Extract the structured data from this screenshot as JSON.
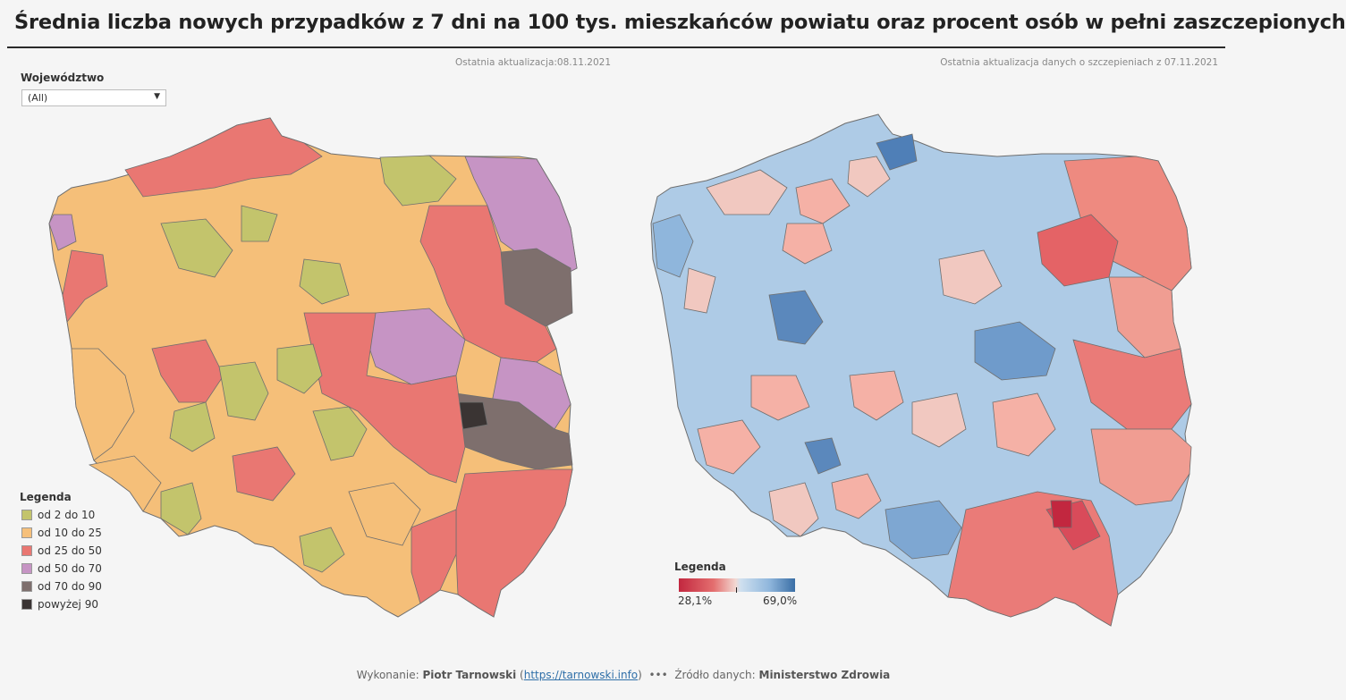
{
  "title": "Średnia liczba nowych przypadków z 7 dni na 100 tys. mieszkańców powiatu oraz procent osób w pełni zaszczepionych",
  "update_left": "Ostatnia aktualizacja:08.11.2021",
  "update_right": "Ostatnia aktualizacja danych o szczepieniach z 07.11.2021",
  "filter": {
    "label": "Województwo",
    "value": "(All)"
  },
  "legend_cases": {
    "title": "Legenda",
    "items": [
      {
        "label": "od 2 do 10",
        "color": "#c3c46c"
      },
      {
        "label": "od 10 do 25",
        "color": "#f6c07b"
      },
      {
        "label": "od 25 do 50",
        "color": "#e97772"
      },
      {
        "label": "od 50 do 70",
        "color": "#c694c4"
      },
      {
        "label": "od 70 do 90",
        "color": "#7e6f6d"
      },
      {
        "label": "powyżej 90",
        "color": "#3a3433"
      }
    ]
  },
  "legend_vax": {
    "title": "Legenda",
    "min_label": "28,1%",
    "max_label": "69,0%"
  },
  "footer": {
    "prefix": "Wykonanie:",
    "author": "Piotr Tarnowski",
    "link": "https://tarnowski.info",
    "dots": "•••",
    "source_prefix": "Źródło danych:",
    "source": "Ministerstwo Zdrowia"
  }
}
